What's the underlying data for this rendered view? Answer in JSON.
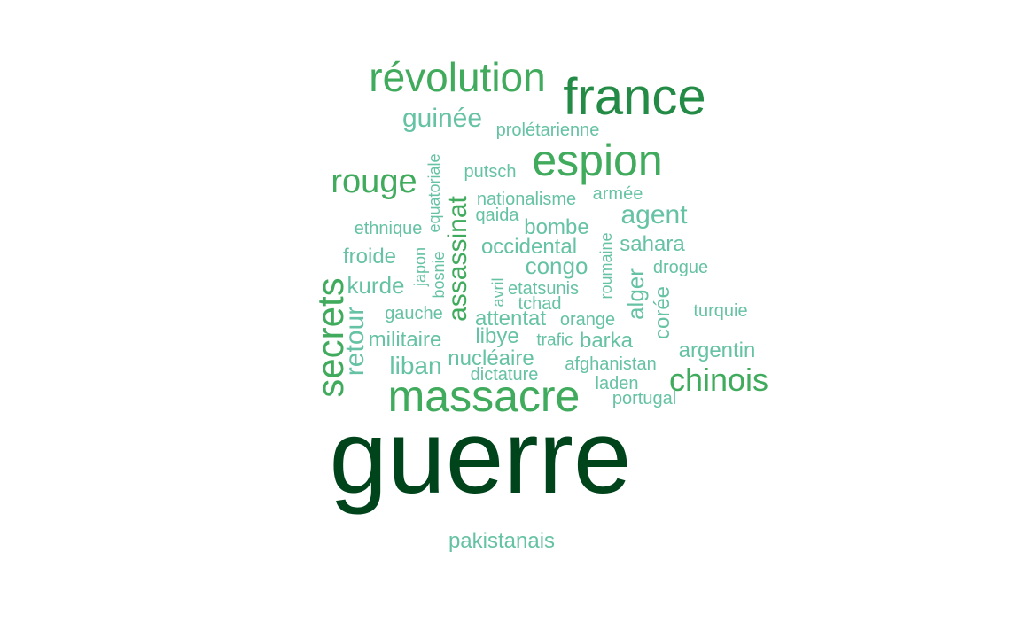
{
  "word_cloud": {
    "colors": {
      "darkest": "#00441b",
      "dark": "#238b45",
      "medium": "#41ab5d",
      "light": "#66c2a4"
    },
    "words": [
      "guerre",
      "france",
      "révolution",
      "massacre",
      "espion",
      "secrets",
      "rouge",
      "chinois",
      "assassinat",
      "agent",
      "guinée",
      "retour",
      "kurde",
      "congo",
      "occidental",
      "nucléaire",
      "liban",
      "alger",
      "militaire",
      "bombe",
      "sahara",
      "attentat",
      "libye",
      "barka",
      "corée",
      "argentin",
      "froide",
      "pakistanais",
      "prolétarienne",
      "putsch",
      "nationalisme",
      "armée",
      "qaida",
      "ethnique",
      "equatoriale",
      "japon",
      "bosnie",
      "roumaine",
      "drogue",
      "avril",
      "etatsunis",
      "tchad",
      "gauche",
      "orange",
      "turquie",
      "trafic",
      "afghanistan",
      "dictature",
      "laden",
      "portugal"
    ]
  }
}
